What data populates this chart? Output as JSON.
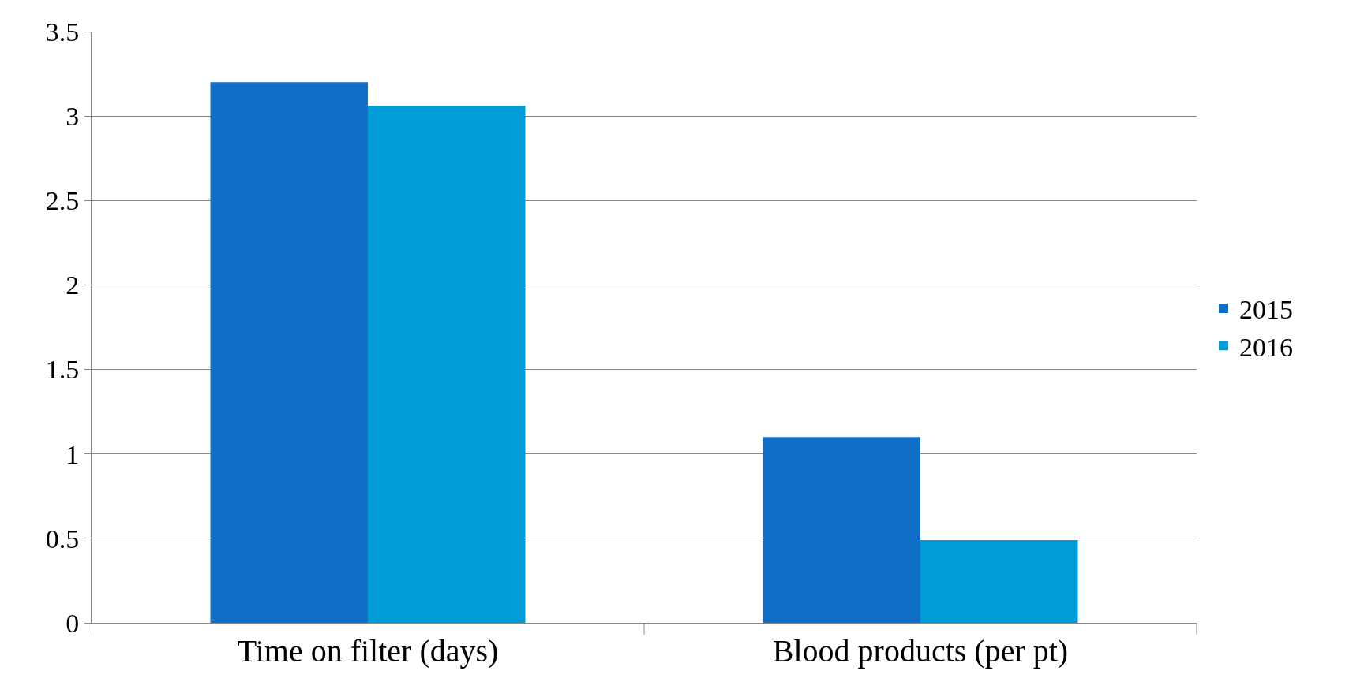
{
  "chart_data": {
    "type": "bar",
    "categories": [
      "Time on filter (days)",
      "Blood products (per pt)"
    ],
    "series": [
      {
        "name": "2015",
        "color": "#0f6fc6",
        "values": [
          3.2,
          1.1
        ]
      },
      {
        "name": "2016",
        "color": "#009dd9",
        "values": [
          3.06,
          0.49
        ]
      }
    ],
    "ylim": [
      0,
      3.5
    ],
    "yticks": [
      {
        "value": 0,
        "label": "0"
      },
      0.5,
      1,
      1.5,
      2,
      2.5,
      3,
      3.5
    ],
    "grid": "y",
    "legend": "right"
  }
}
